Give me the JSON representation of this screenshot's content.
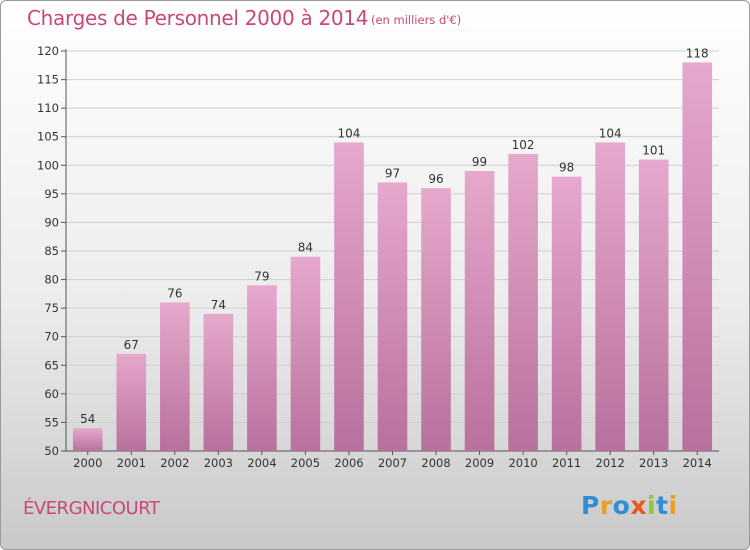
{
  "header": {
    "title": "Charges de Personnel 2000 à 2014",
    "unit_note": "(en milliers d'€)"
  },
  "footer": {
    "town": "ÉVERGNICOURT",
    "brand": "Proxiti"
  },
  "colors": {
    "title": "#c8487a",
    "bar_top": "#e6a8cc",
    "bar_bottom": "#b8709c",
    "grid": "#cfcfcf"
  },
  "chart_data": {
    "type": "bar",
    "categories": [
      "2000",
      "2001",
      "2002",
      "2003",
      "2004",
      "2005",
      "2006",
      "2007",
      "2008",
      "2009",
      "2010",
      "2011",
      "2012",
      "2013",
      "2014"
    ],
    "values": [
      54,
      67,
      76,
      74,
      79,
      84,
      104,
      97,
      96,
      99,
      102,
      98,
      104,
      101,
      118
    ],
    "ylim": [
      50,
      120
    ],
    "yticks": [
      50,
      55,
      60,
      65,
      70,
      75,
      80,
      85,
      90,
      95,
      100,
      105,
      110,
      115,
      120
    ],
    "grid": true,
    "data_labels": true
  }
}
